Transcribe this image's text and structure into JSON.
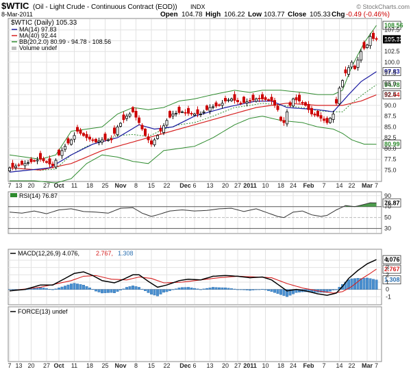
{
  "header": {
    "symbol": "$WTIC",
    "name": "(Oil - Light Crude - Continuous Contract (EOD))",
    "exchange": "INDX",
    "date": "8-Mar-2011",
    "open_label": "Open",
    "open": "104.78",
    "high_label": "High",
    "high": "106.22",
    "low_label": "Low",
    "low": "103.77",
    "close_label": "Close",
    "close": "105.33",
    "chg_label": "Chg",
    "chg": "-0.49 (-0.46%)",
    "watermark": "© StockCharts.com"
  },
  "colors": {
    "up": "#000000",
    "down": "#cc0000",
    "ma14": "#1a1aa0",
    "ma40": "#d62020",
    "bb": "#2e8b2e",
    "macd": "#000000",
    "signal": "#d62020",
    "hist": "#4a8fcf",
    "rsi": "#333333"
  },
  "chart_data": [
    {
      "type": "candlestick",
      "title": "",
      "legend": [
        {
          "key": "price",
          "text": "$WTIC (Daily) 105.33"
        },
        {
          "key": "ma14",
          "text": "MA(14) 97.83"
        },
        {
          "key": "ma40",
          "text": "MA(40) 92.44"
        },
        {
          "key": "bb",
          "text": "BB(20,2.0) 80.99 - 94.78 - 108.56"
        },
        {
          "key": "volume",
          "text": "Volume undef"
        }
      ],
      "y_ticks": [
        75.0,
        77.5,
        80.0,
        82.5,
        85.0,
        87.5,
        90.0,
        92.5,
        95.0,
        97.5,
        100.0,
        102.5,
        105.0,
        107.5
      ],
      "ylim": [
        72.5,
        110.0
      ],
      "y_tags": [
        {
          "value": 108.56,
          "label": "108.56",
          "series": "bb"
        },
        {
          "value": 105.33,
          "label": "105.33",
          "series": "price"
        },
        {
          "value": 97.83,
          "label": "97.83",
          "series": "ma14"
        },
        {
          "value": 94.78,
          "label": "94.78",
          "series": "bb"
        },
        {
          "value": 92.44,
          "label": "92.44",
          "series": "ma40"
        },
        {
          "value": 80.99,
          "label": "80.99",
          "series": "bb"
        }
      ],
      "close_anchors": [
        [
          0,
          75.5
        ],
        [
          5,
          76.5
        ],
        [
          10,
          77.5
        ],
        [
          14,
          76.0
        ],
        [
          16,
          78.5
        ],
        [
          18,
          80.5
        ],
        [
          20,
          82.0
        ],
        [
          22,
          84.0
        ],
        [
          25,
          82.5
        ],
        [
          28,
          81.5
        ],
        [
          30,
          82.0
        ],
        [
          33,
          82.0
        ],
        [
          35,
          85.0
        ],
        [
          38,
          87.5
        ],
        [
          40,
          88.5
        ],
        [
          42,
          86.0
        ],
        [
          44,
          83.0
        ],
        [
          46,
          81.0
        ],
        [
          47,
          82.0
        ],
        [
          49,
          84.0
        ],
        [
          51,
          86.5
        ],
        [
          53,
          88.0
        ],
        [
          56,
          88.5
        ],
        [
          59,
          88.0
        ],
        [
          62,
          88.0
        ],
        [
          65,
          89.5
        ],
        [
          68,
          90.0
        ],
        [
          70,
          91.0
        ],
        [
          72,
          91.5
        ],
        [
          75,
          90.5
        ],
        [
          78,
          91.0
        ],
        [
          80,
          91.5
        ],
        [
          82,
          91.5
        ],
        [
          85,
          91.0
        ],
        [
          87,
          89.0
        ],
        [
          88,
          86.5
        ],
        [
          89,
          86.0
        ],
        [
          90,
          88.5
        ],
        [
          92,
          91.5
        ],
        [
          94,
          91.0
        ],
        [
          96,
          90.0
        ],
        [
          98,
          88.0
        ],
        [
          100,
          87.5
        ],
        [
          102,
          86.5
        ],
        [
          103,
          86.0
        ],
        [
          105,
          88.0
        ],
        [
          106,
          90.5
        ],
        [
          107,
          94.0
        ],
        [
          109,
          97.5
        ],
        [
          111,
          100.0
        ],
        [
          112,
          98.5
        ],
        [
          114,
          102.5
        ],
        [
          116,
          104.0
        ],
        [
          117,
          106.0
        ],
        [
          118,
          105.5
        ],
        [
          119,
          105.33
        ]
      ],
      "ma14_anchors": [
        [
          0,
          74.5
        ],
        [
          13,
          75.5
        ],
        [
          20,
          78.5
        ],
        [
          27,
          81.0
        ],
        [
          35,
          82.5
        ],
        [
          42,
          85.5
        ],
        [
          47,
          84.5
        ],
        [
          53,
          85.0
        ],
        [
          60,
          87.5
        ],
        [
          70,
          89.5
        ],
        [
          80,
          91.0
        ],
        [
          85,
          91.0
        ],
        [
          90,
          89.5
        ],
        [
          100,
          89.0
        ],
        [
          105,
          88.5
        ],
        [
          110,
          92.5
        ],
        [
          114,
          95.5
        ],
        [
          119,
          97.83
        ]
      ],
      "ma40_anchors": [
        [
          0,
          75.5
        ],
        [
          10,
          75.0
        ],
        [
          20,
          76.5
        ],
        [
          30,
          79.5
        ],
        [
          40,
          81.5
        ],
        [
          50,
          83.5
        ],
        [
          60,
          85.5
        ],
        [
          70,
          87.5
        ],
        [
          80,
          89.5
        ],
        [
          90,
          90.5
        ],
        [
          100,
          90.0
        ],
        [
          108,
          90.0
        ],
        [
          114,
          91.0
        ],
        [
          119,
          92.44
        ]
      ],
      "bbu_anchors": [
        [
          0,
          78.5
        ],
        [
          10,
          77.5
        ],
        [
          15,
          78.5
        ],
        [
          20,
          84.0
        ],
        [
          25,
          84.5
        ],
        [
          30,
          85.0
        ],
        [
          35,
          88.0
        ],
        [
          40,
          89.5
        ],
        [
          45,
          89.0
        ],
        [
          50,
          89.5
        ],
        [
          55,
          91.0
        ],
        [
          60,
          91.5
        ],
        [
          66,
          92.5
        ],
        [
          73,
          93.5
        ],
        [
          78,
          93.0
        ],
        [
          82,
          93.5
        ],
        [
          88,
          93.5
        ],
        [
          95,
          93.0
        ],
        [
          100,
          92.5
        ],
        [
          105,
          92.5
        ],
        [
          108,
          93.5
        ],
        [
          111,
          99.0
        ],
        [
          115,
          104.5
        ],
        [
          119,
          108.56
        ]
      ],
      "bbl_anchors": [
        [
          0,
          72.5
        ],
        [
          8,
          72.5
        ],
        [
          15,
          72.0
        ],
        [
          20,
          73.0
        ],
        [
          25,
          76.5
        ],
        [
          30,
          78.5
        ],
        [
          35,
          78.0
        ],
        [
          40,
          77.0
        ],
        [
          45,
          76.5
        ],
        [
          50,
          79.5
        ],
        [
          55,
          80.0
        ],
        [
          60,
          80.5
        ],
        [
          66,
          82.5
        ],
        [
          73,
          85.5
        ],
        [
          78,
          87.0
        ],
        [
          82,
          87.5
        ],
        [
          88,
          86.5
        ],
        [
          95,
          86.0
        ],
        [
          100,
          85.0
        ],
        [
          105,
          84.5
        ],
        [
          108,
          83.5
        ],
        [
          111,
          82.0
        ],
        [
          115,
          81.0
        ],
        [
          119,
          80.99
        ]
      ]
    },
    {
      "type": "line",
      "title": "",
      "legend": [
        {
          "key": "rsi",
          "text": "RSI(14) 76.87"
        }
      ],
      "y_ticks": [
        30,
        50,
        70,
        90
      ],
      "ylim": [
        22,
        96
      ],
      "y_tags": [
        {
          "value": 76.87,
          "label": "76.87",
          "series": "rsi"
        }
      ],
      "rsi_anchors": [
        [
          0,
          60
        ],
        [
          4,
          58
        ],
        [
          8,
          62
        ],
        [
          12,
          57
        ],
        [
          16,
          64
        ],
        [
          20,
          66
        ],
        [
          24,
          61
        ],
        [
          28,
          60
        ],
        [
          32,
          58
        ],
        [
          36,
          67
        ],
        [
          40,
          68
        ],
        [
          43,
          58
        ],
        [
          46,
          52
        ],
        [
          48,
          55
        ],
        [
          52,
          62
        ],
        [
          56,
          64
        ],
        [
          60,
          62
        ],
        [
          64,
          63
        ],
        [
          68,
          66
        ],
        [
          72,
          67
        ],
        [
          76,
          61
        ],
        [
          80,
          66
        ],
        [
          84,
          58
        ],
        [
          87,
          52
        ],
        [
          89,
          50
        ],
        [
          92,
          60
        ],
        [
          95,
          62
        ],
        [
          98,
          55
        ],
        [
          101,
          52
        ],
        [
          103,
          54
        ],
        [
          106,
          64
        ],
        [
          109,
          72
        ],
        [
          112,
          70
        ],
        [
          115,
          74
        ],
        [
          117,
          77
        ],
        [
          119,
          76.87
        ]
      ]
    },
    {
      "type": "line",
      "title": "",
      "legend": [
        {
          "key": "macd",
          "text": "MACD(12,26,9) 4.076,"
        },
        {
          "key": "signal",
          "text": "2.767,"
        },
        {
          "key": "hist",
          "text": "1.308"
        }
      ],
      "y_ticks": [
        -1,
        0,
        1,
        2,
        3,
        4
      ],
      "ylim": [
        -2.0,
        5.4
      ],
      "y_tags": [
        {
          "value": 4.076,
          "label": "4.076",
          "series": "macd"
        },
        {
          "value": 2.767,
          "label": "2.767",
          "series": "signal"
        },
        {
          "value": 1.308,
          "label": "1.308",
          "series": "hist"
        }
      ],
      "macd_anchors": [
        [
          0,
          -0.2
        ],
        [
          5,
          0.0
        ],
        [
          10,
          0.6
        ],
        [
          14,
          0.6
        ],
        [
          18,
          1.5
        ],
        [
          21,
          2.2
        ],
        [
          24,
          2.4
        ],
        [
          27,
          1.9
        ],
        [
          30,
          1.2
        ],
        [
          34,
          0.9
        ],
        [
          37,
          1.4
        ],
        [
          40,
          2.0
        ],
        [
          42,
          2.0
        ],
        [
          45,
          1.1
        ],
        [
          48,
          0.3
        ],
        [
          51,
          0.6
        ],
        [
          55,
          1.2
        ],
        [
          58,
          1.4
        ],
        [
          62,
          1.3
        ],
        [
          66,
          1.8
        ],
        [
          70,
          1.9
        ],
        [
          74,
          1.8
        ],
        [
          78,
          1.6
        ],
        [
          82,
          1.7
        ],
        [
          85,
          1.3
        ],
        [
          88,
          0.4
        ],
        [
          90,
          -0.2
        ],
        [
          93,
          0.0
        ],
        [
          96,
          -0.2
        ],
        [
          100,
          -0.6
        ],
        [
          103,
          -0.8
        ],
        [
          106,
          -0.5
        ],
        [
          108,
          0.4
        ],
        [
          110,
          1.5
        ],
        [
          113,
          2.6
        ],
        [
          116,
          3.5
        ],
        [
          119,
          4.076
        ]
      ],
      "signal_anchors": [
        [
          0,
          -0.2
        ],
        [
          10,
          0.3
        ],
        [
          20,
          1.2
        ],
        [
          24,
          1.8
        ],
        [
          28,
          1.9
        ],
        [
          33,
          1.4
        ],
        [
          38,
          1.3
        ],
        [
          42,
          1.7
        ],
        [
          46,
          1.5
        ],
        [
          50,
          0.9
        ],
        [
          56,
          1.0
        ],
        [
          62,
          1.3
        ],
        [
          68,
          1.6
        ],
        [
          74,
          1.8
        ],
        [
          80,
          1.7
        ],
        [
          85,
          1.6
        ],
        [
          90,
          0.8
        ],
        [
          95,
          0.2
        ],
        [
          100,
          -0.2
        ],
        [
          105,
          -0.5
        ],
        [
          108,
          -0.3
        ],
        [
          111,
          0.4
        ],
        [
          114,
          1.4
        ],
        [
          117,
          2.2
        ],
        [
          119,
          2.767
        ]
      ]
    },
    {
      "type": "line",
      "title": "",
      "legend": [
        {
          "key": "force",
          "text": "FORCE(13) undef"
        }
      ]
    }
  ],
  "x_axis": {
    "labels": [
      {
        "i": 0,
        "t": "7"
      },
      {
        "i": 3,
        "t": "13"
      },
      {
        "i": 7,
        "t": "20"
      },
      {
        "i": 12,
        "t": "27"
      },
      {
        "i": 16,
        "t": "Oct",
        "bold": true
      },
      {
        "i": 21,
        "t": "11"
      },
      {
        "i": 26,
        "t": "18"
      },
      {
        "i": 31,
        "t": "25"
      },
      {
        "i": 36,
        "t": "Nov",
        "bold": true
      },
      {
        "i": 41,
        "t": "8"
      },
      {
        "i": 46,
        "t": "15"
      },
      {
        "i": 51,
        "t": "22"
      },
      {
        "i": 57,
        "t": "Dec",
        "bold": true
      },
      {
        "i": 60,
        "t": "6"
      },
      {
        "i": 65,
        "t": "13"
      },
      {
        "i": 70,
        "t": "20"
      },
      {
        "i": 74,
        "t": "27"
      },
      {
        "i": 78,
        "t": "2011",
        "bold": true
      },
      {
        "i": 83,
        "t": "10"
      },
      {
        "i": 88,
        "t": "18"
      },
      {
        "i": 92,
        "t": "24"
      },
      {
        "i": 97,
        "t": "Feb",
        "bold": true
      },
      {
        "i": 102,
        "t": "7"
      },
      {
        "i": 107,
        "t": "14"
      },
      {
        "i": 111,
        "t": "22"
      },
      {
        "i": 116,
        "t": "Mar",
        "bold": true
      },
      {
        "i": 119,
        "t": "7"
      }
    ]
  }
}
